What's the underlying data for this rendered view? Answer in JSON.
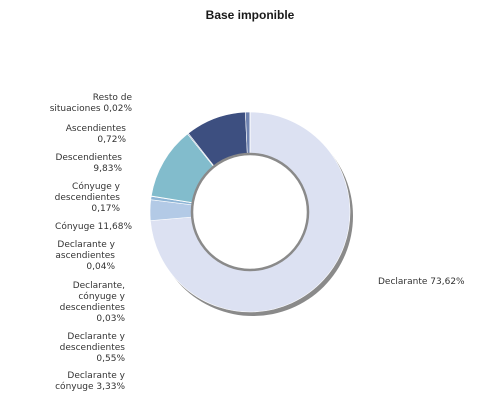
{
  "chart_data": {
    "type": "pie",
    "title": "Base imponible",
    "style": "donut",
    "slices": [
      {
        "label": "Declarante",
        "value": 73.62,
        "display": "73,62%",
        "color": "#dce1f2"
      },
      {
        "label": "Declarante y cónyuge",
        "value": 3.33,
        "display": "3,33%",
        "color": "#b3cae6"
      },
      {
        "label": "Declarante y descendientes",
        "value": 0.55,
        "display": "0,55%",
        "color": "#8eb5d6"
      },
      {
        "label": "Declarante, cónyuge y descendientes",
        "value": 0.03,
        "display": "0,03%",
        "color": "#8fb0d4"
      },
      {
        "label": "Declarante y ascendientes",
        "value": 0.04,
        "display": "0,04%",
        "color": "#8caccf"
      },
      {
        "label": "Cónyuge",
        "value": 11.68,
        "display": "11,68%",
        "color": "#82bccc"
      },
      {
        "label": "Cónyuge y descendientes",
        "value": 0.17,
        "display": "0,17%",
        "color": "#5f7fa8"
      },
      {
        "label": "Descendientes",
        "value": 9.83,
        "display": "9,83%",
        "color": "#3d4f80"
      },
      {
        "label": "Ascendientes",
        "value": 0.72,
        "display": "0,72%",
        "color": "#6e82b0"
      },
      {
        "label": "Resto de situaciones",
        "value": 0.02,
        "display": "0,02%",
        "color": "#aab6d6"
      }
    ],
    "label_lines": [
      [
        "Declarante 73,62%"
      ],
      [
        "Declarante y",
        "cónyuge 3,33%"
      ],
      [
        "Declarante y",
        "descendientes",
        "0,55%"
      ],
      [
        "Declarante,",
        "cónyuge y",
        "descendientes",
        "0,03%"
      ],
      [
        "Declarante y",
        "ascendientes",
        "0,04%"
      ],
      [
        "Cónyuge 11,68%"
      ],
      [
        "Cónyuge y",
        "descendientes",
        "0,17%"
      ],
      [
        "Descendientes",
        "9,83%"
      ],
      [
        "Ascendientes",
        "0,72%"
      ],
      [
        "Resto de",
        "situaciones 0,02%"
      ]
    ],
    "legend": "none",
    "start_angle": "12 o'clock",
    "direction": "clockwise"
  }
}
